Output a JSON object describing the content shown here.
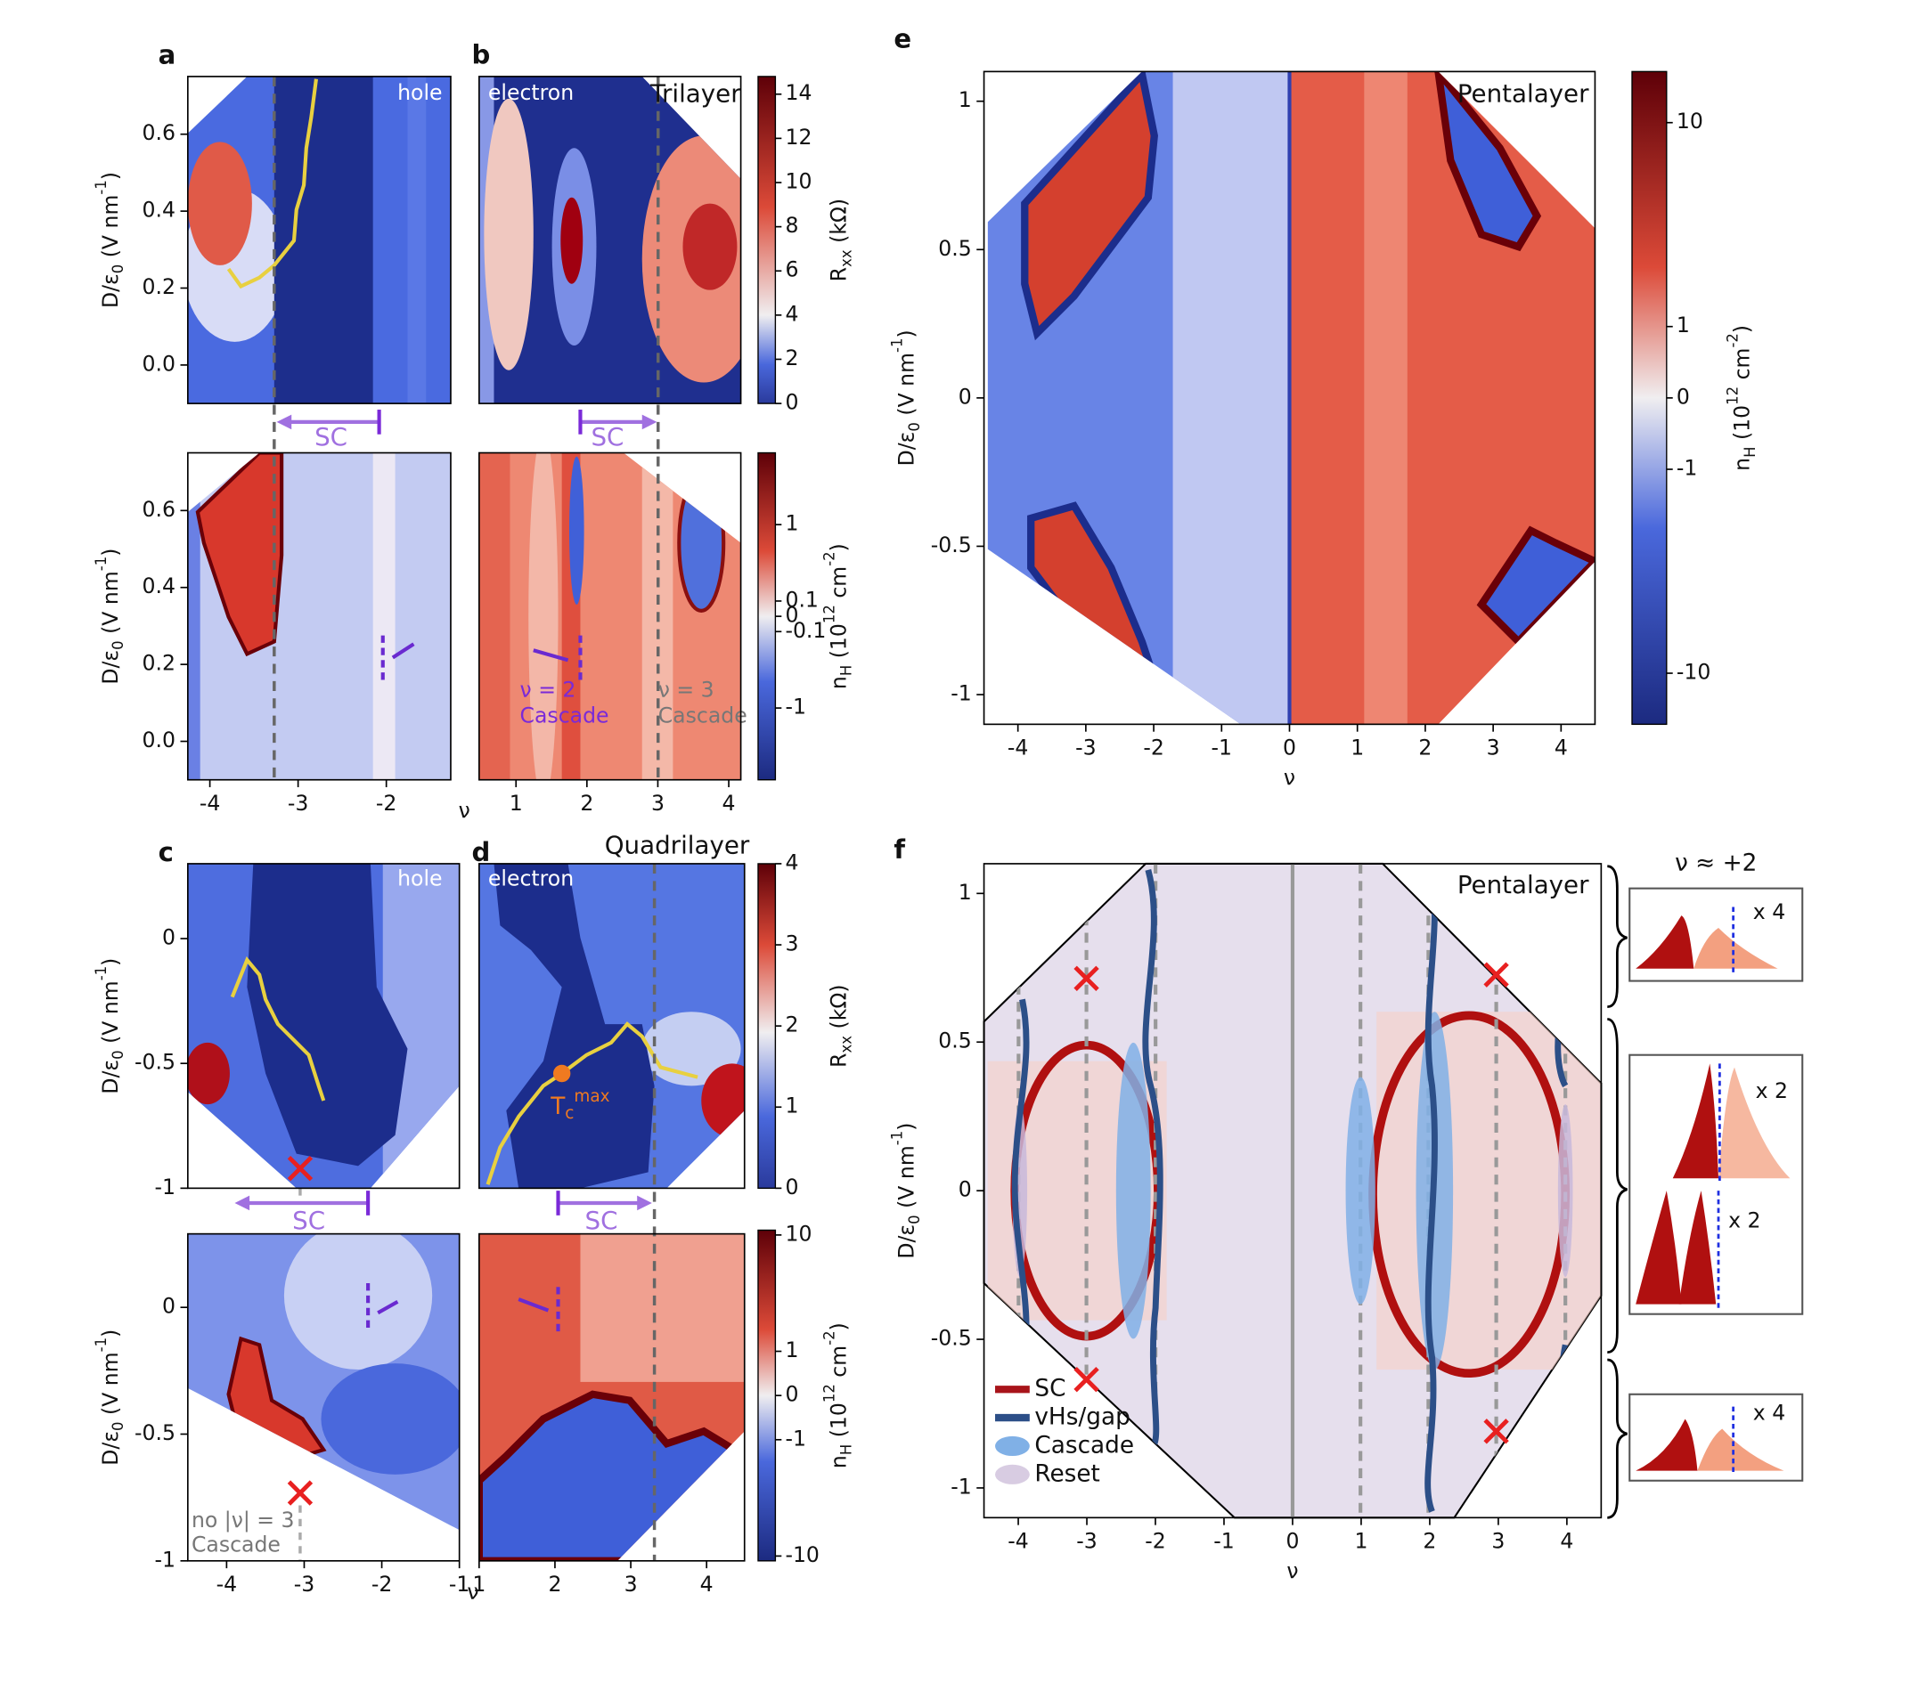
{
  "panel_labels": [
    "a",
    "b",
    "c",
    "d",
    "e",
    "f"
  ],
  "axes": [
    {
      "xlim": [
        -4.25,
        -1.27
      ],
      "ylim": [
        -0.1,
        0.75
      ],
      "yticks": [
        {
          "value": 0,
          "label": "0.0"
        },
        0.2,
        0.4,
        0.6
      ],
      "ylabel": [
        {
          "text": "D/ε"
        },
        {
          "text": "0",
          "shift": "sub"
        },
        {
          "text": " (V nm"
        },
        {
          "text": "-1",
          "shift": "super"
        },
        {
          "text": ")"
        }
      ]
    },
    {
      "xlim": [
        0.48,
        4.17
      ],
      "ylim": [
        -0.1,
        0.75
      ]
    },
    {
      "xlim": [
        -4.25,
        -1.27
      ],
      "ylim": [
        -0.1,
        0.75
      ],
      "yticks": [
        {
          "value": 0,
          "label": "0.0"
        },
        0.2,
        0.4,
        0.6
      ],
      "xticks": [
        -4,
        -3,
        -2
      ],
      "ylabel": [
        {
          "text": "D/ε"
        },
        {
          "text": "0",
          "shift": "sub"
        },
        {
          "text": " (V nm"
        },
        {
          "text": "-1",
          "shift": "super"
        },
        {
          "text": ")"
        }
      ],
      "xlabel": "ν"
    },
    {
      "xlim": [
        0.48,
        4.17
      ],
      "ylim": [
        -0.1,
        0.75
      ],
      "xticks": [
        1,
        2,
        3,
        4
      ]
    },
    {
      "xlim": [
        -4.5,
        -1
      ],
      "ylim": [
        -1,
        0.3
      ],
      "yticks": [
        -1,
        -0.5,
        0
      ],
      "ylabel": [
        {
          "text": "D/ε"
        },
        {
          "text": "0",
          "shift": "sub"
        },
        {
          "text": " (V nm"
        },
        {
          "text": "-1",
          "shift": "super"
        },
        {
          "text": ")"
        }
      ]
    },
    {
      "xlim": [
        1,
        4.5
      ],
      "ylim": [
        -1,
        0.3
      ]
    },
    {
      "xlim": [
        -4.5,
        -1
      ],
      "ylim": [
        -1,
        0.29
      ],
      "yticks": [
        -1,
        -0.5,
        0
      ],
      "xticks": [
        -4,
        -3,
        -2,
        -1
      ],
      "ylabel": [
        {
          "text": "D/ε"
        },
        {
          "text": "0",
          "shift": "sub"
        },
        {
          "text": " (V nm"
        },
        {
          "text": "-1",
          "shift": "super"
        },
        {
          "text": ")"
        }
      ],
      "xlabel": "ν"
    },
    {
      "xlim": [
        1,
        4.5
      ],
      "ylim": [
        -1,
        0.29
      ],
      "xticks": [
        1,
        2,
        3,
        4
      ]
    },
    {
      "xlim": [
        -4.5,
        4.5
      ],
      "ylim": [
        -1.1,
        1.1
      ],
      "yticks": [
        -1,
        -0.5,
        0,
        0.5,
        1
      ],
      "xticks": [
        -4,
        -3,
        -2,
        -1,
        0,
        1,
        2,
        3,
        4
      ],
      "ylabel": [
        {
          "text": "D/ε"
        },
        {
          "text": "0",
          "shift": "sub"
        },
        {
          "text": " (V nm"
        },
        {
          "text": "-1",
          "shift": "super"
        },
        {
          "text": ")"
        }
      ],
      "xlabel": "ν"
    },
    {
      "xlim": [
        -4.5,
        4.5
      ],
      "ylim": [
        -1.1,
        1.1
      ],
      "yticks": [
        -1,
        -0.5,
        0,
        0.5,
        1
      ],
      "xticks": [
        -4,
        -3,
        -2,
        -1,
        0,
        1,
        2,
        3,
        4
      ],
      "ylabel": [
        {
          "text": "D/ε"
        },
        {
          "text": "0",
          "shift": "sub"
        },
        {
          "text": " (V nm"
        },
        {
          "text": "-1",
          "shift": "super"
        },
        {
          "text": ")"
        }
      ],
      "xlabel": "ν"
    }
  ],
  "colorbars": [
    {
      "ylim": [
        0,
        14.8
      ],
      "ticks": [
        0,
        2,
        4,
        6,
        8,
        10,
        12,
        14
      ],
      "label": [
        {
          "text": "R"
        },
        {
          "text": "xx",
          "shift": "sub"
        },
        {
          "text": " (kΩ)"
        }
      ]
    },
    {
      "scale": "symlog",
      "linthresh": 0.1,
      "linscale": 0.2,
      "ylim": [
        -8.7,
        8.7
      ],
      "ticks": [
        -1,
        -0.1,
        0,
        0.1,
        1
      ],
      "label": [
        {
          "text": "n"
        },
        {
          "text": "H",
          "shift": "sub"
        },
        {
          "text": " (10"
        },
        {
          "text": "12",
          "shift": "super"
        },
        {
          "text": " cm"
        },
        {
          "text": "-2",
          "shift": "super"
        },
        {
          "text": ")"
        }
      ]
    },
    {
      "ylim": [
        0,
        4
      ],
      "ticks": [
        0,
        1,
        2,
        3,
        4
      ],
      "label": [
        {
          "text": "R"
        },
        {
          "text": "xx",
          "shift": "sub"
        },
        {
          "text": " (kΩ)"
        }
      ]
    },
    {
      "scale": "symlog",
      "linthresh": 1,
      "linscale": 0.38,
      "ylim": [
        -11,
        11
      ],
      "ticks": [
        -10,
        -1,
        0,
        1,
        10
      ],
      "label": [
        {
          "text": "n"
        },
        {
          "text": "H",
          "shift": "sub"
        },
        {
          "text": " (10"
        },
        {
          "text": "12",
          "shift": "super"
        },
        {
          "text": " cm"
        },
        {
          "text": "-2",
          "shift": "super"
        },
        {
          "text": ")"
        }
      ]
    },
    {
      "scale": "symlog",
      "linthresh": 1,
      "linscale": 0.35,
      "ylim": [
        -17.8,
        17.8
      ],
      "ticks": [
        -10,
        -1,
        0,
        1,
        10
      ],
      "label": [
        {
          "text": "n"
        },
        {
          "text": "H",
          "shift": "sub"
        },
        {
          "text": " (10"
        },
        {
          "text": "12",
          "shift": "super"
        },
        {
          "text": " cm"
        },
        {
          "text": "-2",
          "shift": "super"
        },
        {
          "text": ")"
        }
      ]
    }
  ],
  "annotations": [
    "hole",
    "electron",
    "Trilayer",
    "SC",
    "SC",
    "ν = 2",
    "Cascade",
    "ν = 3",
    "Cascade",
    "hole",
    "electron",
    "Quadrilayer",
    "SC",
    "SC",
    "no |ν| = 3",
    "Cascade",
    "Pentalayer",
    "Pentalayer"
  ],
  "tc_max": [
    {
      "text": "T"
    },
    {
      "text": "c",
      "shift": "sub"
    },
    {
      "text": "max",
      "shift": "super"
    }
  ],
  "legend": [
    {
      "name": "SC",
      "color": "#a8141a"
    },
    {
      "name": "vHs/gap",
      "color": "#2c4f88"
    },
    {
      "name": "Cascade",
      "color": "#80b0e6"
    },
    {
      "name": "Reset",
      "color": "#d8cce2"
    }
  ],
  "inset_title": "ν ≈ +2",
  "inset_factors": [
    "x 4",
    "x 2",
    "x 2",
    "x 4"
  ]
}
